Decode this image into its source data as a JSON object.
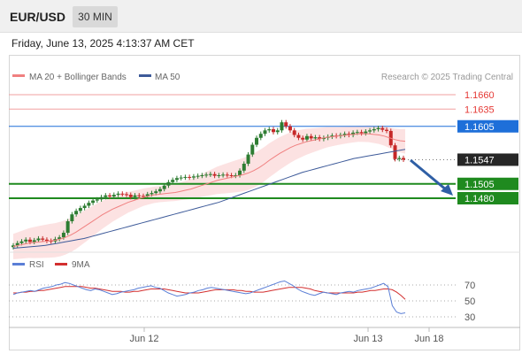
{
  "header": {
    "symbol": "EUR/USD",
    "timeframe": "30 MIN"
  },
  "datetime": "Friday, June 13, 2025 4:13:37 AM CET",
  "legend": {
    "ma20": {
      "label": "MA 20 + Bollinger Bands",
      "color": "#f08080"
    },
    "ma50": {
      "label": "MA 50",
      "color": "#3d5a99"
    },
    "credit": "Research © 2025 Trading Central"
  },
  "rsi_legend": {
    "rsi": {
      "label": "RSI",
      "color": "#5b7fd6"
    },
    "ma": {
      "label": "9MA",
      "color": "#d32f2f"
    }
  },
  "chart_data": {
    "type": "candlestick",
    "price_axis": {
      "y_ref_price_top": 1.166,
      "y_ref_price_bottom": 1.148
    },
    "levels": [
      {
        "value": 1.166,
        "label": "1.1660",
        "kind": "resistance",
        "color": "#e53935"
      },
      {
        "value": 1.1635,
        "label": "1.1635",
        "kind": "resistance",
        "color": "#e53935"
      },
      {
        "value": 1.1605,
        "label": "1.1605",
        "kind": "pivot",
        "color": "#1e6fd9"
      },
      {
        "value": 1.1547,
        "label": "1.1547",
        "kind": "last",
        "color": "#262626"
      },
      {
        "value": 1.1505,
        "label": "1.1505",
        "kind": "support",
        "color": "#1f8a1f"
      },
      {
        "value": 1.148,
        "label": "1.1480",
        "kind": "support",
        "color": "#1f8a1f"
      }
    ],
    "x_labels": [
      "Jun 12",
      "Jun 13",
      "Jun 18"
    ],
    "candles_close": [
      1.1398,
      1.1402,
      1.1405,
      1.1408,
      1.1404,
      1.1407,
      1.141,
      1.1408,
      1.1406,
      1.1405,
      1.1409,
      1.1412,
      1.142,
      1.144,
      1.1452,
      1.1458,
      1.1463,
      1.1467,
      1.1472,
      1.1476,
      1.1478,
      1.1482,
      1.1485,
      1.1483,
      1.1486,
      1.1488,
      1.1487,
      1.1486,
      1.1482,
      1.1485,
      1.1484,
      1.1483,
      1.1487,
      1.1489,
      1.1492,
      1.1496,
      1.1502,
      1.1508,
      1.1512,
      1.1515,
      1.1516,
      1.1517,
      1.1516,
      1.1518,
      1.1519,
      1.152,
      1.1521,
      1.1522,
      1.1519,
      1.152,
      1.1521,
      1.152,
      1.1519,
      1.152,
      1.1528,
      1.154,
      1.1556,
      1.1573,
      1.1585,
      1.1592,
      1.1598,
      1.16,
      1.1595,
      1.1598,
      1.1612,
      1.1605,
      1.1598,
      1.159,
      1.1585,
      1.1582,
      1.1588,
      1.1584,
      1.1586,
      1.1583,
      1.1585,
      1.1587,
      1.1589,
      1.1588,
      1.159,
      1.1592,
      1.159,
      1.1594,
      1.1595,
      1.1593,
      1.1596,
      1.1598,
      1.16,
      1.1602,
      1.1599,
      1.1597,
      1.1572,
      1.1548,
      1.155,
      1.1547
    ],
    "ma20": [
      1.1396,
      1.1398,
      1.14,
      1.1402,
      1.1403,
      1.1404,
      1.1405,
      1.1406,
      1.1407,
      1.1409,
      1.1412,
      1.1416,
      1.1421,
      1.1427,
      1.1433,
      1.1439,
      1.1445,
      1.1451,
      1.1456,
      1.1461,
      1.1465,
      1.1469,
      1.1473,
      1.1476,
      1.1479,
      1.1482,
      1.1484,
      1.1486,
      1.1487,
      1.1488,
      1.1489,
      1.149,
      1.1492,
      1.1494,
      1.1496,
      1.1499,
      1.1502,
      1.1505,
      1.1508,
      1.1511,
      1.1513,
      1.1515,
      1.1517,
      1.1519,
      1.1521,
      1.1524,
      1.1528,
      1.1533,
      1.1539,
      1.1546,
      1.1552,
      1.1558,
      1.1563,
      1.1568,
      1.1572,
      1.1575,
      1.1578,
      1.158,
      1.1582,
      1.1584,
      1.1586,
      1.1587,
      1.1588,
      1.1589,
      1.159,
      1.1591,
      1.1592,
      1.1592,
      1.1592,
      1.1591,
      1.159,
      1.1588,
      1.1585,
      1.1582,
      1.158,
      1.1579
    ],
    "ma50": [
      1.1393,
      1.1394,
      1.1395,
      1.1396,
      1.1397,
      1.1398,
      1.14,
      1.1402,
      1.1404,
      1.1406,
      1.1408,
      1.141,
      1.1413,
      1.1416,
      1.1419,
      1.1422,
      1.1425,
      1.1428,
      1.1431,
      1.1434,
      1.1437,
      1.144,
      1.1443,
      1.1446,
      1.1449,
      1.1452,
      1.1455,
      1.1458,
      1.1461,
      1.1464,
      1.1467,
      1.147,
      1.1473,
      1.1477,
      1.1481,
      1.1485,
      1.1489,
      1.1493,
      1.1497,
      1.1501,
      1.1505,
      1.1509,
      1.1513,
      1.1517,
      1.1521,
      1.1525,
      1.1528,
      1.1531,
      1.1534,
      1.1537,
      1.154,
      1.1543,
      1.1546,
      1.1549,
      1.1551,
      1.1553,
      1.1555,
      1.1557,
      1.1559,
      1.1561,
      1.1563,
      1.1565
    ],
    "rsi_axis": [
      70,
      50,
      30
    ],
    "rsi": [
      58,
      60,
      61,
      62,
      63,
      62,
      64,
      66,
      67,
      68,
      70,
      71,
      73,
      72,
      70,
      68,
      66,
      64,
      63,
      65,
      64,
      62,
      60,
      58,
      59,
      61,
      62,
      63,
      64,
      66,
      67,
      68,
      69,
      67,
      66,
      63,
      60,
      58,
      56,
      57,
      58,
      60,
      61,
      63,
      64,
      66,
      67,
      66,
      65,
      64,
      63,
      62,
      61,
      60,
      59,
      60,
      62,
      64,
      66,
      68,
      70,
      72,
      74,
      75,
      72,
      69,
      65,
      62,
      60,
      58,
      57,
      59,
      61,
      60,
      59,
      58,
      60,
      61,
      62,
      61,
      63,
      64,
      65,
      66,
      68,
      70,
      72,
      68,
      44,
      36,
      34,
      35
    ],
    "rsi_ma": [
      60,
      60,
      61,
      61,
      62,
      62,
      63,
      63,
      64,
      65,
      66,
      67,
      68,
      68,
      68,
      68,
      68,
      67,
      66,
      66,
      65,
      64,
      63,
      62,
      62,
      62,
      61,
      61,
      62,
      62,
      63,
      64,
      65,
      65,
      65,
      65,
      64,
      63,
      62,
      61,
      60,
      60,
      60,
      60,
      61,
      62,
      63,
      64,
      64,
      64,
      64,
      64,
      63,
      63,
      62,
      62,
      61,
      61,
      61,
      62,
      63,
      64,
      65,
      66,
      67,
      67,
      67,
      67,
      66,
      65,
      63,
      62,
      61,
      60,
      60,
      60,
      60,
      60,
      60,
      60,
      61,
      61,
      62,
      63,
      63,
      64,
      65,
      65,
      64,
      61,
      57,
      52
    ]
  }
}
